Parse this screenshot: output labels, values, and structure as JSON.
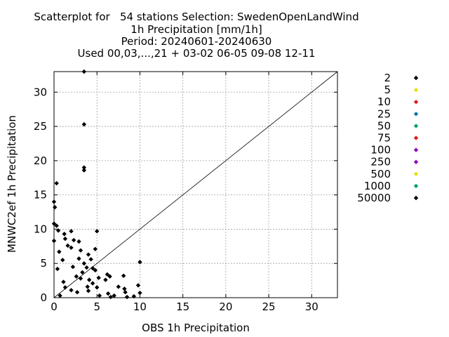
{
  "title_lines": [
    "Scatterplot for   54 stations Selection: SwedenOpenLandWind",
    "1h Precipitation [mm/1h]",
    "Period: 20240601-20240630",
    "Used 00,03,...,21 + 03-02 06-05 09-08 12-11"
  ],
  "chart_data": {
    "type": "scatter",
    "xlabel": "OBS 1h Precipitation",
    "ylabel": "MNWC2ef 1h Precipitation",
    "xlim": [
      0,
      33
    ],
    "ylim": [
      0,
      33
    ],
    "xticks": [
      0,
      5,
      10,
      15,
      20,
      25,
      30
    ],
    "yticks": [
      0,
      5,
      10,
      15,
      20,
      25,
      30
    ],
    "grid": true,
    "diagonal": true,
    "legend_position": "right",
    "series": [
      {
        "name": "2",
        "color": "#000000",
        "points": []
      },
      {
        "name": "5",
        "color": "#e8e000",
        "points": []
      },
      {
        "name": "10",
        "color": "#e41a1c",
        "points": []
      },
      {
        "name": "25",
        "color": "#0072b2",
        "points": []
      },
      {
        "name": "50",
        "color": "#009e73",
        "points": []
      },
      {
        "name": "75",
        "color": "#e41a1c",
        "points": []
      },
      {
        "name": "100",
        "color": "#8e00c2",
        "points": []
      },
      {
        "name": "250",
        "color": "#8e00c2",
        "points": []
      },
      {
        "name": "500",
        "color": "#e8e000",
        "points": []
      },
      {
        "name": "1000",
        "color": "#009e73",
        "points": []
      },
      {
        "name": "50000",
        "color": "#000000",
        "points": [
          [
            3.5,
            33.0
          ],
          [
            3.5,
            25.3
          ],
          [
            3.5,
            19.0
          ],
          [
            3.5,
            18.6
          ],
          [
            0.3,
            16.7
          ],
          [
            0.0,
            14.0
          ],
          [
            0.1,
            13.2
          ],
          [
            0.0,
            10.8
          ],
          [
            0.3,
            10.5
          ],
          [
            0.5,
            9.8
          ],
          [
            1.2,
            9.3
          ],
          [
            2.0,
            9.7
          ],
          [
            5.0,
            9.7
          ],
          [
            1.3,
            8.6
          ],
          [
            2.3,
            8.4
          ],
          [
            0.0,
            8.3
          ],
          [
            2.9,
            8.2
          ],
          [
            1.6,
            7.6
          ],
          [
            2.0,
            7.3
          ],
          [
            4.8,
            7.1
          ],
          [
            3.1,
            6.9
          ],
          [
            0.6,
            6.7
          ],
          [
            4.0,
            6.3
          ],
          [
            4.3,
            5.6
          ],
          [
            10.0,
            5.2
          ],
          [
            2.9,
            5.7
          ],
          [
            1.0,
            5.5
          ],
          [
            3.5,
            5.0
          ],
          [
            3.8,
            4.4
          ],
          [
            2.2,
            4.5
          ],
          [
            4.5,
            4.3
          ],
          [
            4.8,
            4.0
          ],
          [
            0.4,
            4.2
          ],
          [
            3.3,
            3.7
          ],
          [
            6.2,
            3.4
          ],
          [
            8.1,
            3.2
          ],
          [
            6.5,
            3.1
          ],
          [
            5.2,
            2.9
          ],
          [
            2.6,
            3.1
          ],
          [
            3.1,
            2.8
          ],
          [
            4.1,
            2.6
          ],
          [
            6.0,
            2.6
          ],
          [
            1.1,
            2.3
          ],
          [
            4.5,
            2.1
          ],
          [
            3.9,
            1.6
          ],
          [
            7.5,
            1.6
          ],
          [
            1.3,
            1.5
          ],
          [
            5.0,
            1.5
          ],
          [
            8.2,
            1.3
          ],
          [
            2.0,
            1.1
          ],
          [
            9.8,
            1.8
          ],
          [
            4.0,
            1.0
          ],
          [
            6.3,
            0.6
          ],
          [
            8.3,
            0.8
          ],
          [
            2.7,
            0.8
          ],
          [
            10.0,
            0.7
          ],
          [
            0.7,
            0.3
          ],
          [
            5.3,
            0.3
          ],
          [
            7.0,
            0.3
          ],
          [
            8.5,
            0.1
          ],
          [
            9.3,
            0.2
          ],
          [
            6.6,
            0.1
          ]
        ]
      }
    ]
  }
}
